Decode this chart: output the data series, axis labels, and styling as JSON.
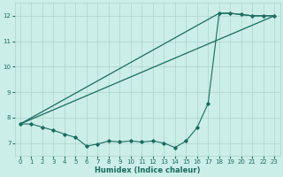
{
  "xlabel": "Humidex (Indice chaleur)",
  "bg_color": "#cceee8",
  "grid_color": "#aad4cc",
  "line_color": "#1a6b60",
  "xlim": [
    -0.5,
    23.5
  ],
  "ylim": [
    6.5,
    12.5
  ],
  "yticks": [
    7,
    8,
    9,
    10,
    11,
    12
  ],
  "xticks": [
    0,
    1,
    2,
    3,
    4,
    5,
    6,
    7,
    8,
    9,
    10,
    11,
    12,
    13,
    14,
    15,
    16,
    17,
    18,
    19,
    20,
    21,
    22,
    23
  ],
  "line1_x": [
    0,
    1,
    2,
    3,
    4,
    5,
    6,
    7,
    8,
    9,
    10,
    11,
    12,
    13,
    14,
    15,
    16,
    17,
    18,
    19,
    20,
    21,
    22,
    23
  ],
  "line1_y": [
    7.75,
    7.75,
    7.62,
    7.5,
    7.35,
    7.22,
    6.88,
    6.96,
    7.08,
    7.04,
    7.08,
    7.04,
    7.08,
    7.0,
    6.82,
    7.08,
    7.6,
    8.55,
    12.1,
    12.1,
    12.05,
    12.0,
    12.0,
    12.0
  ],
  "line2_x": [
    0,
    18,
    19,
    20,
    21,
    22,
    23
  ],
  "line2_y": [
    7.75,
    12.1,
    12.1,
    12.05,
    12.0,
    12.0,
    12.0
  ],
  "line3_x": [
    0,
    23
  ],
  "line3_y": [
    7.75,
    12.0
  ]
}
